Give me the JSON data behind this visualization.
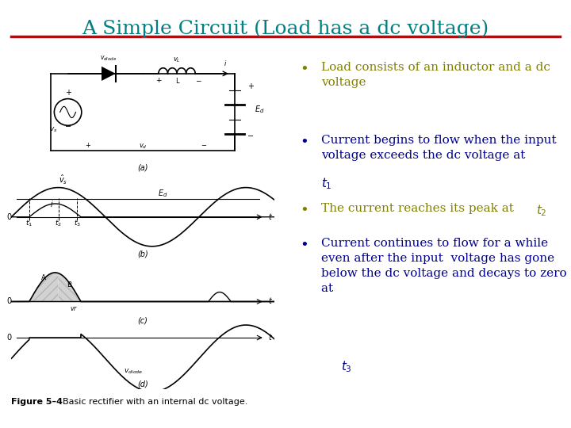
{
  "title": "A Simple Circuit (Load has a dc voltage)",
  "title_color": "#008080",
  "title_fontsize": 18,
  "underline_color": "#cc0000",
  "bg_color": "#ffffff",
  "bullet_color_1": "#808000",
  "bullet_color_2": "#00008b",
  "bullet1": "Load consists of an inductor and a dc\nvoltage",
  "bullet2_part1": "Current begins to flow when the input\nvoltage exceeds the dc voltage at ",
  "bullet2_sub": "$t_1$",
  "bullet3_part1": "The current reaches its peak at ",
  "bullet3_sub": "$t_2$",
  "bullet4_part1": "Current continues to flow for a while\neven after the input  voltage has gone\nbelow the dc voltage and decays to zero\nat ",
  "bullet4_sub": "$t_3$",
  "figure_label": "Figure 5–4",
  "figure_caption": "  Basic rectifier with an internal dc voltage."
}
